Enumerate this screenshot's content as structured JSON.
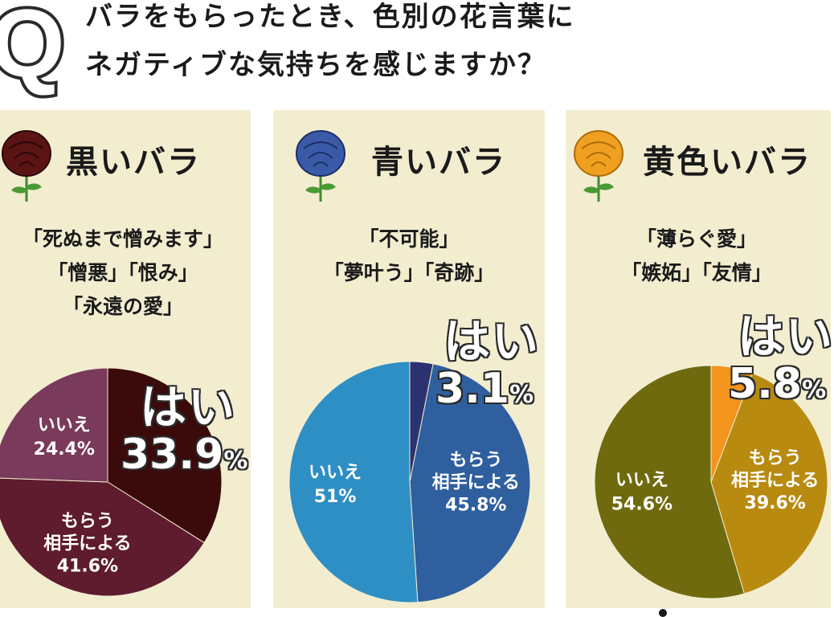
{
  "header": {
    "badge": "Q",
    "title_line1": "バラをもらったとき、色別の花言葉に",
    "title_line2": "ネガティブな気持ちを感じますか？"
  },
  "chart_data": [
    {
      "type": "pie",
      "title": "黒いバラ",
      "meaning": [
        "「死ぬまで憎みます」",
        "「憎悪」「恨み」",
        "「永遠の愛」"
      ],
      "rose_color": "#5a1414",
      "slices": [
        {
          "label": "はい",
          "value": 33.9,
          "value_text": "33.9",
          "color": "#3b0a0a"
        },
        {
          "label": "もらう相手による",
          "value": 41.6,
          "value_text": "41.6%",
          "color": "#5e1c2e"
        },
        {
          "label": "いいえ",
          "value": 24.4,
          "value_text": "24.4%",
          "color": "#7a3a5c"
        }
      ]
    },
    {
      "type": "pie",
      "title": "青いバラ",
      "meaning": [
        "「不可能」",
        "「夢叶う」「奇跡」"
      ],
      "rose_color": "#3a5aa8",
      "slices": [
        {
          "label": "はい",
          "value": 3.1,
          "value_text": "3.1",
          "color": "#2c3270"
        },
        {
          "label": "もらう相手による",
          "value": 45.8,
          "value_text": "45.8%",
          "color": "#2f5f9e"
        },
        {
          "label": "いいえ",
          "value": 51,
          "value_text": "51%",
          "color": "#2e8fc4"
        }
      ]
    },
    {
      "type": "pie",
      "title": "黄色いバラ",
      "meaning": [
        "「薄らぐ愛」",
        "「嫉妬」「友情」"
      ],
      "rose_color": "#f0a020",
      "slices": [
        {
          "label": "はい",
          "value": 5.8,
          "value_text": "5.8",
          "color": "#f3941c"
        },
        {
          "label": "もらう相手による",
          "value": 39.6,
          "value_text": "39.6%",
          "color": "#b88a10"
        },
        {
          "label": "いいえ",
          "value": 54.6,
          "value_text": "54.6%",
          "color": "#6f6a0e"
        }
      ]
    }
  ],
  "labels": {
    "yes": "はい",
    "depends": [
      "もらう",
      "相手による"
    ],
    "no": "いいえ",
    "pct": "%"
  }
}
